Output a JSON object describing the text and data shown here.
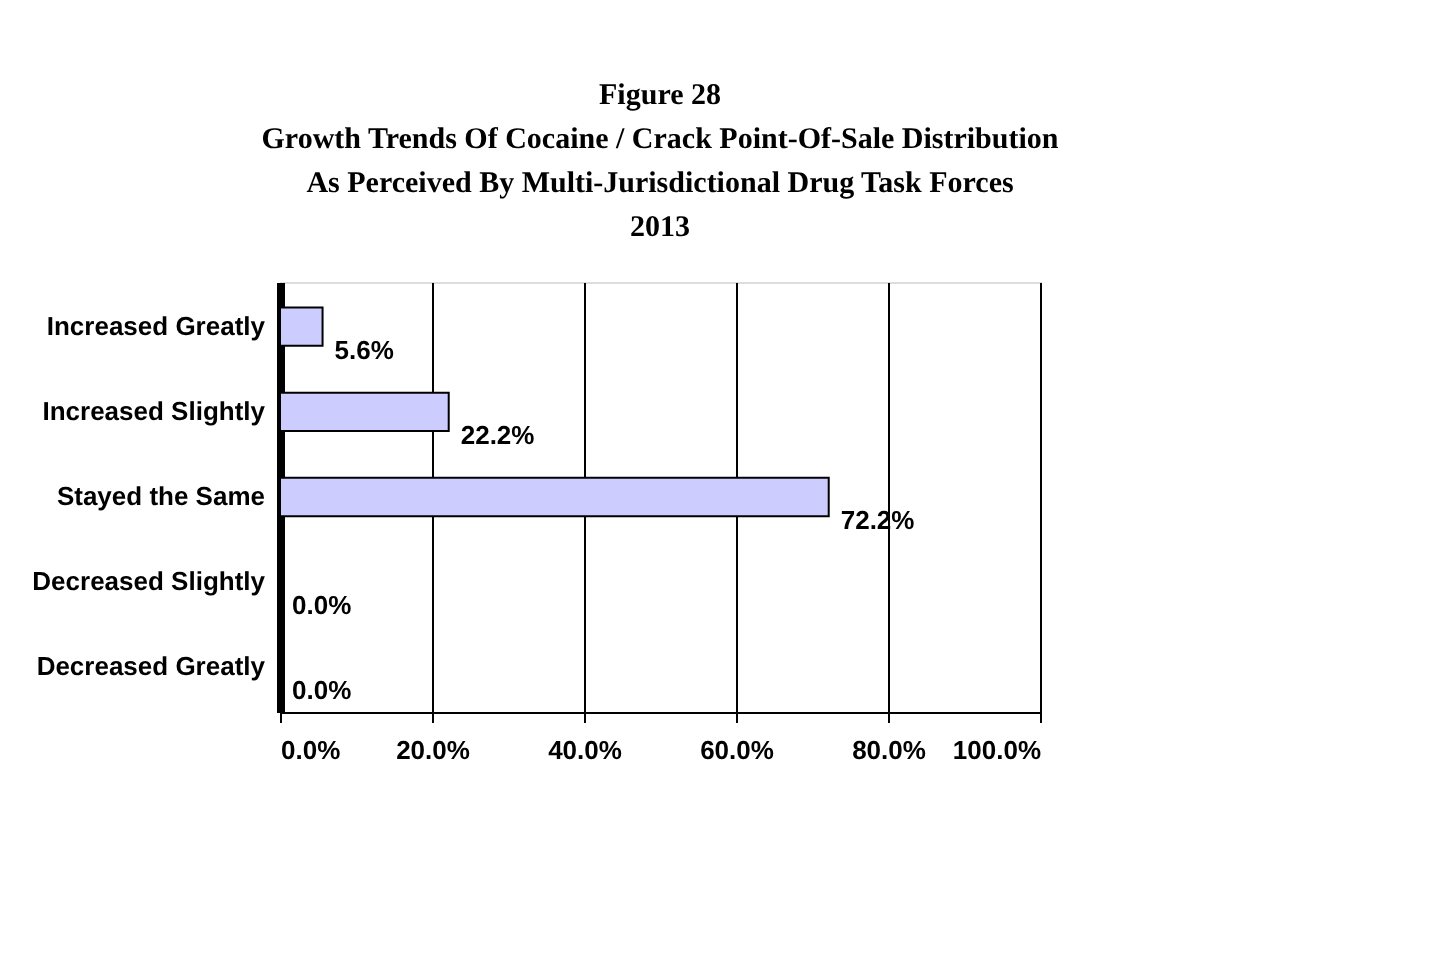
{
  "chart_data": {
    "type": "bar",
    "orientation": "horizontal",
    "title": "Figure 28",
    "subtitle": "Growth Trends Of Cocaine / Crack Point-Of-Sale Distribution\nAs Perceived By Multi-Jurisdictional Drug Task Forces\n2013",
    "categories": [
      "Increased Greatly",
      "Increased Slightly",
      "Stayed the Same",
      "Decreased Slightly",
      "Decreased Greatly"
    ],
    "values": [
      5.6,
      22.2,
      72.2,
      0.0,
      0.0
    ],
    "value_labels": [
      "5.6%",
      "22.2%",
      "72.2%",
      "0.0%",
      "0.0%"
    ],
    "color": "#ccccff",
    "xlim": [
      0,
      100
    ],
    "xticks": [
      {
        "value": 0,
        "label": "0.0%"
      },
      {
        "value": 20,
        "label": "20.0%"
      },
      {
        "value": 40,
        "label": "40.0%"
      },
      {
        "value": 60,
        "label": "60.0%"
      },
      {
        "value": 80,
        "label": "80.0%"
      },
      {
        "value": 100,
        "label": "100.0%"
      }
    ],
    "grid": "x"
  }
}
